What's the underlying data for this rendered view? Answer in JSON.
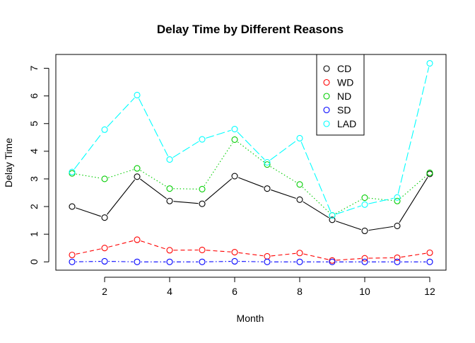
{
  "chart_data": {
    "type": "line",
    "title": "Delay Time by Different Reasons",
    "xlabel": "Month",
    "ylabel": "Delay Time",
    "xlim": [
      0.5,
      12.5
    ],
    "ylim": [
      -0.3,
      7.5
    ],
    "x": [
      1,
      2,
      3,
      4,
      5,
      6,
      7,
      8,
      9,
      10,
      11,
      12
    ],
    "xticks": [
      2,
      4,
      6,
      8,
      10,
      12
    ],
    "yticks": [
      0,
      1,
      2,
      3,
      4,
      5,
      6,
      7
    ],
    "legend_position": "top-right",
    "grid": false,
    "series": [
      {
        "name": "CD",
        "color": "#000000",
        "dash": "solid",
        "values": [
          2.0,
          1.6,
          3.08,
          2.2,
          2.1,
          3.1,
          2.65,
          2.25,
          1.52,
          1.12,
          1.3,
          3.18
        ]
      },
      {
        "name": "WD",
        "color": "#FF0000",
        "dash": "dashed",
        "values": [
          0.25,
          0.5,
          0.8,
          0.42,
          0.43,
          0.35,
          0.2,
          0.32,
          0.05,
          0.13,
          0.15,
          0.33
        ]
      },
      {
        "name": "ND",
        "color": "#00CD00",
        "dash": "dotted",
        "values": [
          3.2,
          3.0,
          3.38,
          2.65,
          2.63,
          4.42,
          3.52,
          2.8,
          1.68,
          2.32,
          2.2,
          3.22
        ]
      },
      {
        "name": "SD",
        "color": "#0000FF",
        "dash": "dotdash",
        "values": [
          0.0,
          0.02,
          0.0,
          0.0,
          0.0,
          0.02,
          0.0,
          0.0,
          0.0,
          0.0,
          0.0,
          0.0
        ]
      },
      {
        "name": "LAD",
        "color": "#00FFFF",
        "dash": "longdash",
        "values": [
          3.25,
          4.78,
          6.03,
          3.7,
          4.43,
          4.8,
          3.6,
          4.47,
          1.68,
          2.07,
          2.33,
          7.18
        ]
      }
    ]
  }
}
